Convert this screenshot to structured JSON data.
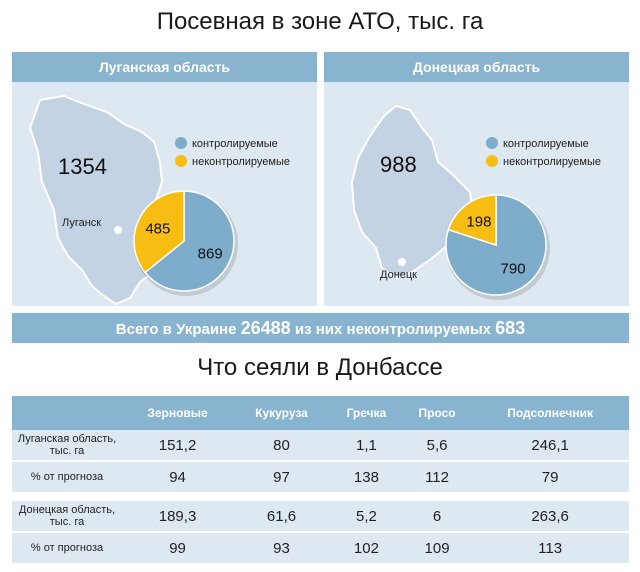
{
  "title": "Посевная в зоне АТО, тыс. га",
  "regions": [
    {
      "header": "Луганская область",
      "total": "1354",
      "city": "Луганск",
      "legend_controlled": "контролируемые",
      "legend_uncontrolled": "неконтролируемые",
      "controlled_label": "869",
      "uncontrolled_label": "485"
    },
    {
      "header": "Донецкая область",
      "total": "988",
      "city": "Донецк",
      "legend_controlled": "контролируемые",
      "legend_uncontrolled": "неконтролируемые",
      "controlled_label": "790",
      "uncontrolled_label": "198"
    }
  ],
  "colors": {
    "controlled": "#7eaccb",
    "uncontrolled": "#f7bd12",
    "map": "#c3d3e3",
    "panel": "#dde8f0",
    "header": "#88b4cf"
  },
  "total_bar": {
    "prefix": "Всего в Украине",
    "total": "26488",
    "middle": "из них неконтролируемых",
    "uncontrolled": "683"
  },
  "subtitle": "Что сеяли в Донбассе",
  "table": {
    "columns": [
      "Зерновые",
      "Кукуруза",
      "Гречка",
      "Просо",
      "Подсолнечник"
    ],
    "rows": [
      {
        "label": "Луганская область, тыс. га",
        "values": [
          "151,2",
          "80",
          "1,1",
          "5,6",
          "246,1"
        ]
      },
      {
        "label": "% от прогноза",
        "values": [
          "94",
          "97",
          "138",
          "112",
          "79"
        ]
      },
      {
        "label": "Донецкая область, тыс. га",
        "values": [
          "189,3",
          "61,6",
          "5,2",
          "6",
          "263,6"
        ]
      },
      {
        "label": "% от прогноза",
        "values": [
          "99",
          "93",
          "102",
          "109",
          "113"
        ]
      }
    ]
  },
  "chart_data": [
    {
      "type": "pie",
      "title": "Луганская область",
      "categories": [
        "контролируемые",
        "неконтролируемые"
      ],
      "values": [
        869,
        485
      ],
      "total": 1354
    },
    {
      "type": "pie",
      "title": "Донецкая область",
      "categories": [
        "контролируемые",
        "неконтролируемые"
      ],
      "values": [
        790,
        198
      ],
      "total": 988
    },
    {
      "type": "table",
      "title": "Что сеяли в Донбассе",
      "columns": [
        "Зерновые",
        "Кукуруза",
        "Гречка",
        "Просо",
        "Подсолнечник"
      ],
      "rows": [
        "Луганская область, тыс. га",
        "% от прогноза",
        "Донецкая область, тыс. га",
        "% от прогноза"
      ],
      "values": [
        [
          151.2,
          80,
          1.1,
          5.6,
          246.1
        ],
        [
          94,
          97,
          138,
          112,
          79
        ],
        [
          189.3,
          61.6,
          5.2,
          6,
          263.6
        ],
        [
          99,
          93,
          102,
          109,
          113
        ]
      ]
    }
  ]
}
